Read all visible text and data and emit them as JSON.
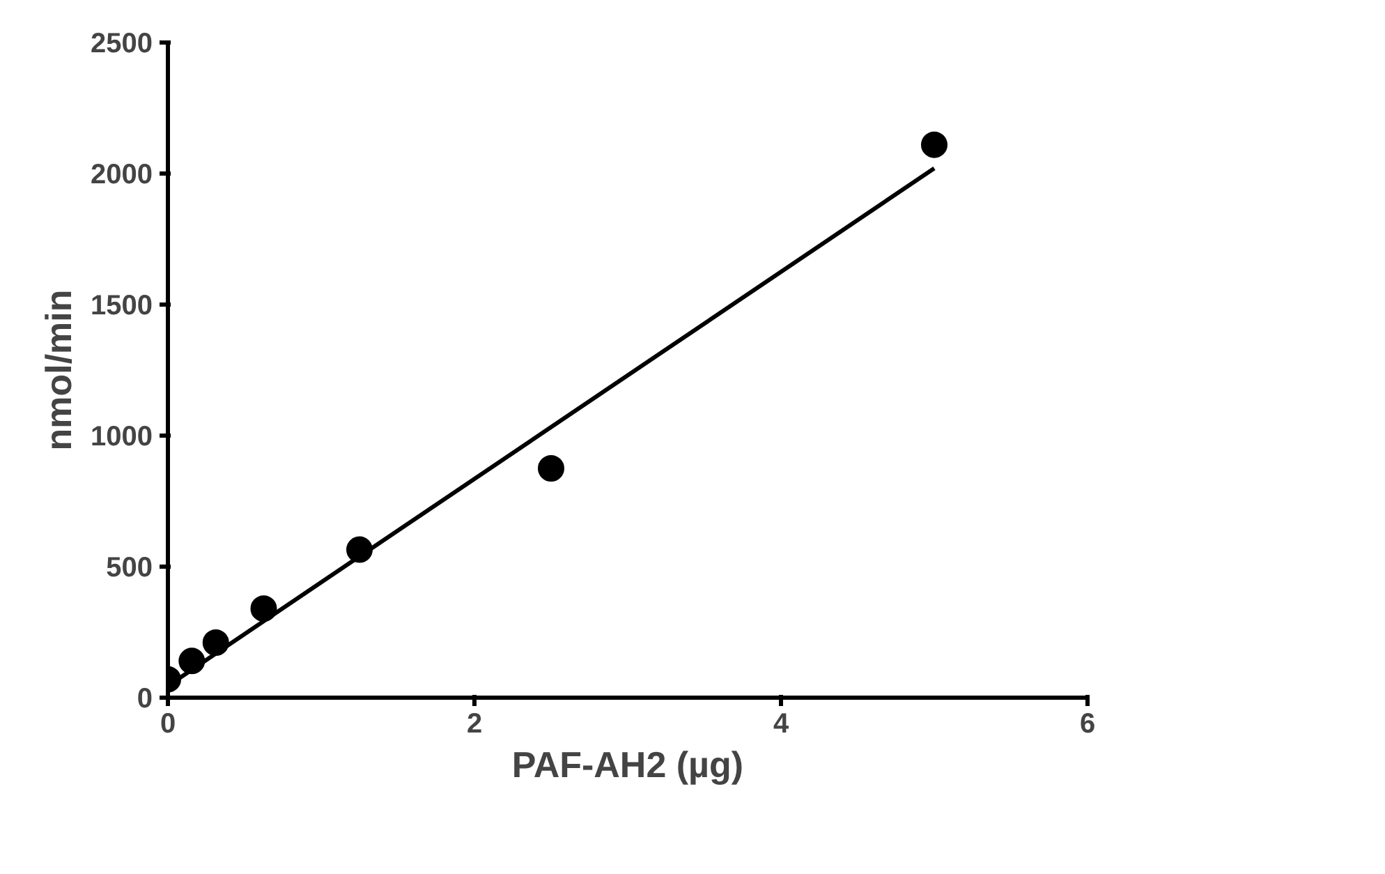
{
  "chart_data": {
    "type": "scatter",
    "xlabel": "PAF-AH2 (µg)",
    "ylabel": "nmol/min",
    "xlim": [
      0,
      6
    ],
    "xticks": [
      0,
      2,
      4,
      6
    ],
    "ylim": [
      0,
      2500
    ],
    "yticks": [
      0,
      500,
      1000,
      1500,
      2000,
      2500
    ],
    "grid": false,
    "marker": "circle",
    "series": [
      {
        "color": "#000000",
        "x": [
          0,
          0.156,
          0.3125,
          0.625,
          1.25,
          2.5,
          5
        ],
        "values": [
          70,
          140,
          210,
          340,
          565,
          875,
          2110
        ]
      },
      {
        "type": "line",
        "color": "#000000",
        "line_style": "solid",
        "marker": "none",
        "x": [
          0,
          5
        ],
        "values": [
          45,
          2020
        ]
      }
    ]
  }
}
